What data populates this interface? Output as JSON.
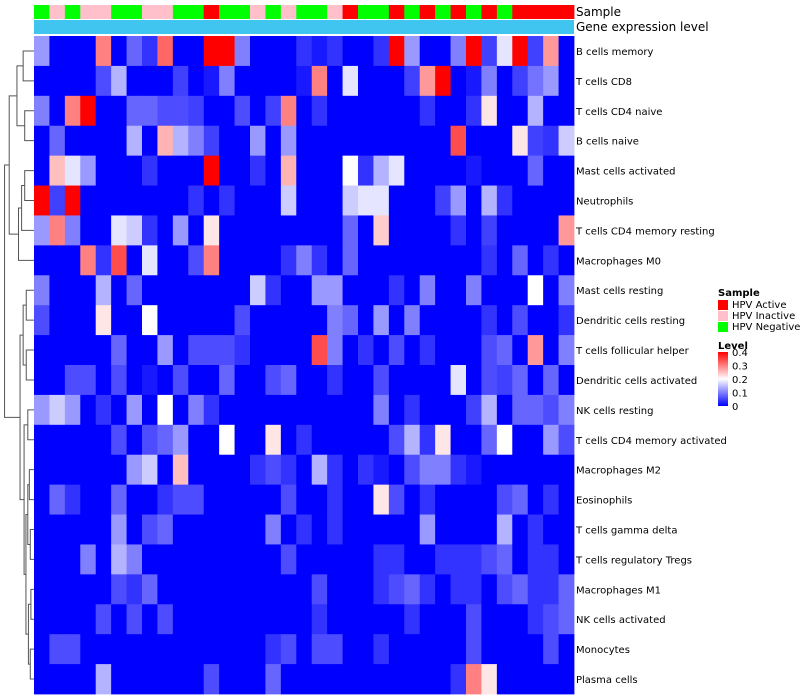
{
  "chart_data": {
    "type": "heatmap",
    "title": "",
    "annotation_rows": [
      "Sample",
      "Gene expression level"
    ],
    "legend": {
      "sample_title": "Sample",
      "sample_entries": [
        {
          "label": "HPV Active",
          "color": "#ff0000"
        },
        {
          "label": "HPV Inactive",
          "color": "#ffc0cb"
        },
        {
          "label": "HPV Negative",
          "color": "#00ff00"
        }
      ],
      "level_title": "Level",
      "level_ticks": [
        {
          "label": "0.4",
          "value": 0.4
        },
        {
          "label": "0.3",
          "value": 0.3
        },
        {
          "label": "0.2",
          "value": 0.2
        },
        {
          "label": "0.1",
          "value": 0.1
        },
        {
          "label": "0",
          "value": 0
        }
      ],
      "level_range": [
        0,
        0.4
      ]
    },
    "colors": {
      "low": "#0000ff",
      "mid": "#ffffff",
      "high": "#ff0000",
      "gene_expression_bar": "#3fc5f0",
      "dendrogram": "#555555"
    },
    "sample_groups": [
      "Negative",
      "Inactive",
      "Negative",
      "Inactive",
      "Inactive",
      "Negative",
      "Negative",
      "Inactive",
      "Inactive",
      "Negative",
      "Negative",
      "Active",
      "Negative",
      "Negative",
      "Inactive",
      "Negative",
      "Inactive",
      "Negative",
      "Negative",
      "Inactive",
      "Active",
      "Negative",
      "Negative",
      "Active",
      "Negative",
      "Active",
      "Negative",
      "Active",
      "Negative",
      "Active",
      "Negative",
      "Active",
      "Active",
      "Active",
      "Active"
    ],
    "rows": [
      "B cells memory",
      "T cells CD8",
      "T cells CD4 naive",
      "B cells naive",
      "Mast cells activated",
      "Neutrophils",
      "T cells CD4 memory resting",
      "Macrophages M0",
      "Mast cells resting",
      "Dendritic cells resting",
      "T cells follicular helper",
      "Dendritic cells activated",
      "NK cells resting",
      "T cells CD4 memory activated",
      "Macrophages M2",
      "Eosinophils",
      "T cells gamma delta",
      "T cells regulatory  Tregs",
      "Macrophages M1",
      "NK cells activated",
      "Monocytes",
      "Plasma cells"
    ],
    "values": [
      [
        0.12,
        0,
        0,
        0,
        0.3,
        0,
        0.08,
        0.04,
        0.32,
        0,
        0,
        0.4,
        0.4,
        0.1,
        0,
        0,
        0,
        0.04,
        0.02,
        0.04,
        0,
        0,
        0.04,
        0.4,
        0.12,
        0,
        0,
        0.1,
        0.4,
        0.05,
        0.18,
        0.4,
        0.05,
        0.28,
        0
      ],
      [
        0,
        0,
        0,
        0,
        0.06,
        0.14,
        0,
        0,
        0,
        0.05,
        0,
        0.02,
        0.1,
        0,
        0,
        0,
        0,
        0.02,
        0.3,
        0,
        0.18,
        0,
        0,
        0,
        0.05,
        0.28,
        0.4,
        0,
        0.02,
        0.1,
        0,
        0.05,
        0.09,
        0.12,
        0
      ],
      [
        0.1,
        0,
        0.3,
        0.4,
        0,
        0,
        0.08,
        0.08,
        0.06,
        0.06,
        0.05,
        0,
        0,
        0.06,
        0,
        0.05,
        0.3,
        0,
        0.04,
        0,
        0,
        0,
        0,
        0,
        0,
        0.04,
        0,
        0,
        0.04,
        0.22,
        0,
        0,
        0.14,
        0,
        0
      ],
      [
        0,
        0.08,
        0,
        0,
        0,
        0,
        0.14,
        0,
        0.26,
        0.14,
        0.1,
        0.05,
        0,
        0,
        0.12,
        0,
        0.12,
        0,
        0,
        0,
        0,
        0,
        0,
        0,
        0,
        0,
        0,
        0.34,
        0,
        0,
        0,
        0.22,
        0.05,
        0.04,
        0.16
      ],
      [
        0,
        0.25,
        0.18,
        0.12,
        0,
        0,
        0,
        0.04,
        0,
        0,
        0,
        0.4,
        0,
        0,
        0.04,
        0,
        0.26,
        0,
        0,
        0,
        0.2,
        0.04,
        0.14,
        0.18,
        0,
        0,
        0,
        0,
        0.02,
        0,
        0,
        0,
        0.08,
        0,
        0
      ],
      [
        0.4,
        0.05,
        0.4,
        0,
        0,
        0,
        0,
        0,
        0,
        0,
        0.04,
        0,
        0.04,
        0,
        0,
        0,
        0.16,
        0,
        0,
        0,
        0.16,
        0.18,
        0.18,
        0,
        0,
        0,
        0.05,
        0.12,
        0,
        0.14,
        0.04,
        0,
        0,
        0,
        0
      ],
      [
        0.12,
        0.3,
        0.1,
        0,
        0,
        0.18,
        0.16,
        0.04,
        0,
        0.12,
        0,
        0.22,
        0,
        0,
        0,
        0,
        0,
        0,
        0,
        0,
        0.08,
        0,
        0.24,
        0,
        0,
        0,
        0,
        0.04,
        0,
        0.05,
        0,
        0,
        0,
        0,
        0.28
      ],
      [
        0,
        0,
        0,
        0.3,
        0.04,
        0.34,
        0,
        0.18,
        0,
        0,
        0.06,
        0.3,
        0,
        0,
        0,
        0,
        0.04,
        0.1,
        0.04,
        0,
        0.08,
        0,
        0,
        0,
        0,
        0,
        0,
        0,
        0,
        0.04,
        0,
        0.08,
        0,
        0.04,
        0
      ],
      [
        0.1,
        0,
        0,
        0,
        0.14,
        0,
        0.08,
        0,
        0,
        0,
        0,
        0,
        0,
        0,
        0.16,
        0.04,
        0,
        0,
        0.12,
        0.12,
        0,
        0,
        0,
        0.04,
        0,
        0.1,
        0,
        0,
        0.1,
        0,
        0,
        0,
        0.2,
        0,
        0.1
      ],
      [
        0.06,
        0,
        0,
        0,
        0.22,
        0,
        0,
        0.2,
        0,
        0,
        0,
        0,
        0,
        0.06,
        0,
        0,
        0,
        0,
        0,
        0.1,
        0.08,
        0,
        0.12,
        0,
        0.1,
        0,
        0,
        0,
        0,
        0.04,
        0,
        0.06,
        0,
        0,
        0.04
      ],
      [
        0,
        0,
        0,
        0,
        0,
        0.08,
        0,
        0,
        0.12,
        0,
        0.06,
        0.06,
        0.06,
        0.04,
        0,
        0,
        0,
        0,
        0.34,
        0.1,
        0,
        0.04,
        0,
        0.06,
        0,
        0.04,
        0,
        0,
        0,
        0.06,
        0.08,
        0,
        0.28,
        0,
        0.1
      ],
      [
        0,
        0,
        0.06,
        0.06,
        0,
        0.06,
        0,
        0.02,
        0,
        0.06,
        0,
        0,
        0.08,
        0,
        0,
        0.06,
        0.08,
        0,
        0,
        0.04,
        0,
        0,
        0.06,
        0,
        0,
        0,
        0,
        0.18,
        0,
        0.06,
        0.05,
        0.08,
        0,
        0.08,
        0
      ],
      [
        0.12,
        0.16,
        0.12,
        0,
        0.04,
        0,
        0.12,
        0,
        0.2,
        0,
        0.1,
        0.04,
        0,
        0,
        0,
        0,
        0,
        0,
        0,
        0,
        0,
        0,
        0.1,
        0,
        0.04,
        0,
        0,
        0,
        0.05,
        0.14,
        0,
        0.08,
        0.08,
        0.06,
        0.1
      ],
      [
        0,
        0,
        0,
        0,
        0,
        0.06,
        0,
        0.06,
        0.08,
        0.12,
        0,
        0,
        0.2,
        0,
        0,
        0.22,
        0,
        0.04,
        0,
        0,
        0,
        0,
        0,
        0.06,
        0.14,
        0.04,
        0.22,
        0,
        0,
        0.08,
        0.2,
        0,
        0,
        0.12,
        0.06
      ],
      [
        0,
        0,
        0,
        0,
        0,
        0,
        0.12,
        0.16,
        0,
        0.25,
        0,
        0,
        0,
        0,
        0.04,
        0.06,
        0.04,
        0,
        0.14,
        0.04,
        0,
        0.04,
        0.02,
        0,
        0.06,
        0.1,
        0.1,
        0.04,
        0.02,
        0,
        0,
        0,
        0,
        0,
        0
      ],
      [
        0,
        0.08,
        0.04,
        0,
        0,
        0.08,
        0,
        0,
        0.04,
        0.06,
        0.06,
        0,
        0,
        0,
        0,
        0,
        0.06,
        0,
        0,
        0.04,
        0,
        0,
        0.22,
        0.06,
        0,
        0.04,
        0,
        0,
        0,
        0,
        0.06,
        0.08,
        0,
        0.04,
        0
      ],
      [
        0,
        0,
        0,
        0,
        0,
        0.12,
        0,
        0.06,
        0.08,
        0,
        0,
        0,
        0,
        0,
        0,
        0.1,
        0,
        0.04,
        0,
        0.04,
        0,
        0,
        0,
        0,
        0,
        0.12,
        0,
        0,
        0,
        0,
        0.14,
        0,
        0.04,
        0,
        0
      ],
      [
        0,
        0,
        0,
        0.1,
        0,
        0.14,
        0.1,
        0,
        0,
        0,
        0,
        0,
        0,
        0,
        0,
        0,
        0.06,
        0,
        0,
        0,
        0,
        0,
        0.04,
        0.04,
        0,
        0,
        0.04,
        0.04,
        0.04,
        0.06,
        0.08,
        0,
        0.04,
        0.04,
        0
      ],
      [
        0,
        0,
        0,
        0,
        0,
        0.06,
        0.04,
        0.08,
        0,
        0,
        0,
        0,
        0,
        0,
        0,
        0,
        0,
        0,
        0.06,
        0,
        0,
        0,
        0.04,
        0.06,
        0.08,
        0.04,
        0,
        0.04,
        0.04,
        0,
        0.06,
        0.08,
        0.04,
        0.04,
        0.08
      ],
      [
        0,
        0,
        0,
        0,
        0.06,
        0,
        0.06,
        0,
        0.06,
        0,
        0,
        0,
        0,
        0,
        0,
        0,
        0,
        0,
        0.04,
        0,
        0,
        0,
        0,
        0,
        0.04,
        0,
        0,
        0,
        0.06,
        0,
        0,
        0,
        0.04,
        0.06,
        0.08
      ],
      [
        0,
        0.06,
        0.06,
        0,
        0,
        0,
        0,
        0,
        0,
        0,
        0,
        0,
        0,
        0,
        0,
        0.04,
        0.06,
        0,
        0.06,
        0.06,
        0,
        0,
        0.04,
        0,
        0,
        0,
        0,
        0,
        0.06,
        0,
        0,
        0,
        0,
        0.06,
        0
      ],
      [
        0,
        0,
        0,
        0,
        0.14,
        0,
        0,
        0,
        0,
        0,
        0,
        0.06,
        0,
        0,
        0,
        0.08,
        0,
        0,
        0,
        0,
        0,
        0,
        0,
        0,
        0,
        0,
        0,
        0.04,
        0.3,
        0.22,
        0,
        0,
        0,
        0,
        0
      ]
    ]
  }
}
